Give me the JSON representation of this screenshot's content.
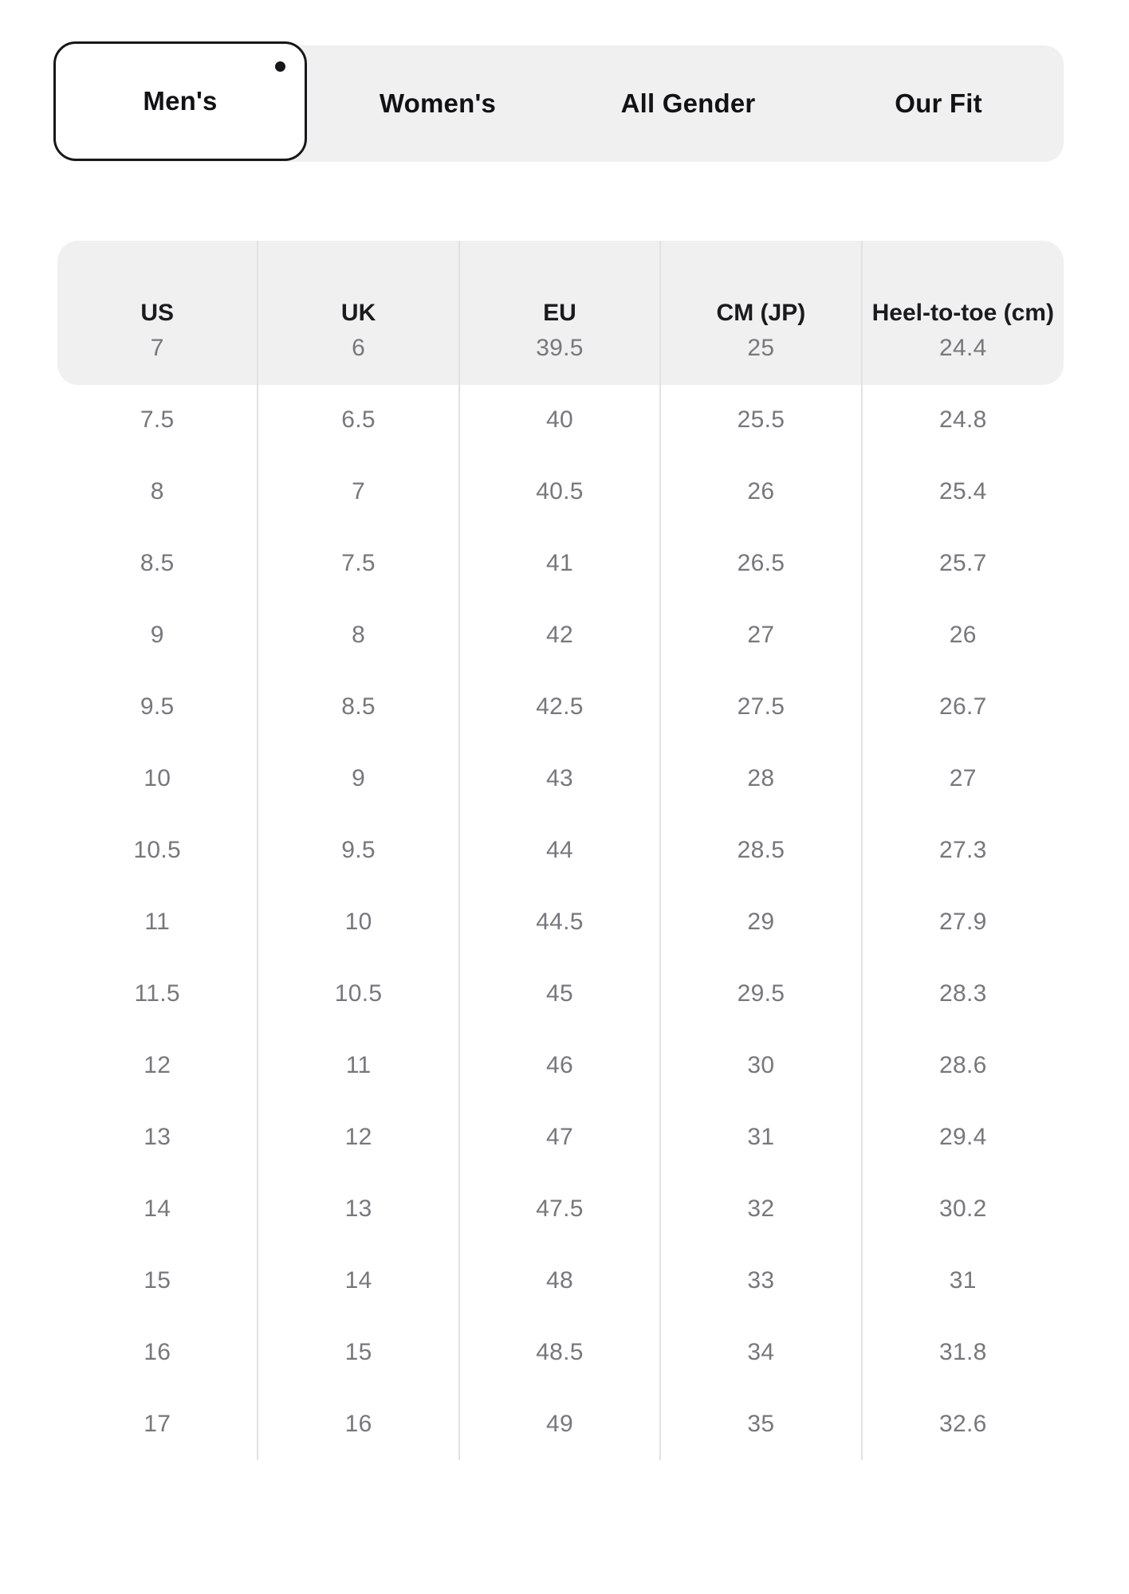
{
  "tabs": {
    "items": [
      {
        "label": "Men's",
        "selected": true
      },
      {
        "label": "Women's",
        "selected": false
      },
      {
        "label": "All Gender",
        "selected": false
      },
      {
        "label": "Our Fit",
        "selected": false
      }
    ]
  },
  "table": {
    "columns": [
      "US",
      "UK",
      "EU",
      "CM (JP)",
      "Heel-to-toe (cm)"
    ],
    "rows": [
      [
        "7",
        "6",
        "39.5",
        "25",
        "24.4"
      ],
      [
        "7.5",
        "6.5",
        "40",
        "25.5",
        "24.8"
      ],
      [
        "8",
        "7",
        "40.5",
        "26",
        "25.4"
      ],
      [
        "8.5",
        "7.5",
        "41",
        "26.5",
        "25.7"
      ],
      [
        "9",
        "8",
        "42",
        "27",
        "26"
      ],
      [
        "9.5",
        "8.5",
        "42.5",
        "27.5",
        "26.7"
      ],
      [
        "10",
        "9",
        "43",
        "28",
        "27"
      ],
      [
        "10.5",
        "9.5",
        "44",
        "28.5",
        "27.3"
      ],
      [
        "11",
        "10",
        "44.5",
        "29",
        "27.9"
      ],
      [
        "11.5",
        "10.5",
        "45",
        "29.5",
        "28.3"
      ],
      [
        "12",
        "11",
        "46",
        "30",
        "28.6"
      ],
      [
        "13",
        "12",
        "47",
        "31",
        "29.4"
      ],
      [
        "14",
        "13",
        "47.5",
        "32",
        "30.2"
      ],
      [
        "15",
        "14",
        "48",
        "33",
        "31"
      ],
      [
        "16",
        "15",
        "48.5",
        "34",
        "31.8"
      ],
      [
        "17",
        "16",
        "49",
        "35",
        "32.6"
      ]
    ]
  },
  "colors": {
    "tabbar_bg": "#f0f0f1",
    "header_bg": "#f0f0f1",
    "selected_tab_bg": "#ffffff",
    "selected_tab_border": "#17171a",
    "tab_text": "#121214",
    "header_text": "#1b1b1e",
    "body_text": "#77777c",
    "separator": "#e2e2e5"
  }
}
